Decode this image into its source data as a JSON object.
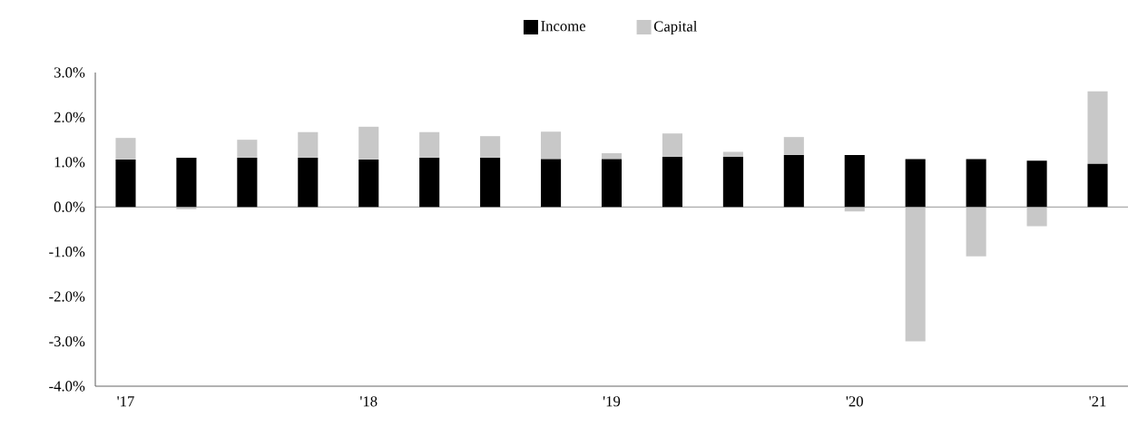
{
  "chart_data": {
    "type": "bar",
    "stacked": true,
    "legend": "top",
    "categories": [
      "'17",
      null,
      null,
      null,
      "'18",
      null,
      null,
      null,
      "'19",
      null,
      null,
      null,
      "'20",
      null,
      null,
      null,
      "'21"
    ],
    "series": [
      {
        "name": "Income",
        "color": "#000000",
        "values": [
          1.06,
          1.1,
          1.1,
          1.1,
          1.06,
          1.1,
          1.1,
          1.07,
          1.07,
          1.12,
          1.12,
          1.16,
          1.16,
          1.07,
          1.07,
          1.03,
          0.96
        ]
      },
      {
        "name": "Capital",
        "color": "#c8c8c8",
        "values": [
          0.48,
          -0.05,
          0.4,
          0.57,
          0.73,
          0.57,
          0.48,
          0.61,
          0.13,
          0.52,
          0.11,
          0.4,
          -0.1,
          -3.0,
          -1.1,
          -0.43,
          1.62
        ]
      }
    ],
    "ylim": [
      -4,
      3
    ],
    "yticks": [
      {
        "value": 3,
        "label": "3.0%"
      },
      {
        "value": 2,
        "label": "2.0%"
      },
      {
        "value": 1,
        "label": "1.0%"
      },
      {
        "value": 0,
        "label": "0.0%"
      },
      {
        "value": -1,
        "label": "-1.0%"
      },
      {
        "value": -2,
        "label": "-2.0%"
      },
      {
        "value": -3,
        "label": "-3.0%"
      },
      {
        "value": -4,
        "label": "-4.0%"
      }
    ]
  }
}
